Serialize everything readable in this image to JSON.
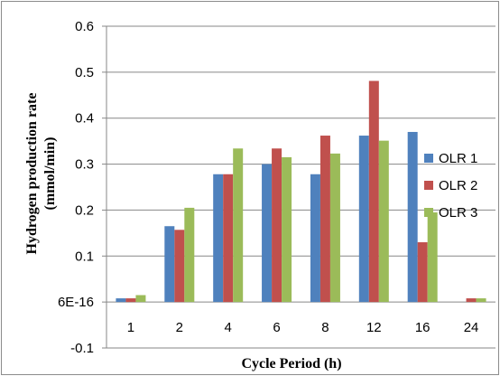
{
  "chart_data": {
    "type": "bar",
    "title": "",
    "xlabel": "Cycle Period  (h)",
    "ylabel_line1": "Hydrogen production rate",
    "ylabel_line2": "(mmol/min)",
    "categories": [
      "1",
      "2",
      "4",
      "6",
      "8",
      "12",
      "16",
      "24"
    ],
    "ylim": [
      -0.1,
      0.6
    ],
    "yticks": [
      -0.1,
      0,
      0.1,
      0.2,
      0.3,
      0.4,
      0.5,
      0.6
    ],
    "ytick_labels": [
      "-0.1",
      "6E-16",
      "0.1",
      "0.2",
      "0.3",
      "0.4",
      "0.5",
      "0.6"
    ],
    "grid": "horizontal",
    "legend_position": "right",
    "series": [
      {
        "name": "OLR 1",
        "color": "#4F81BD",
        "values": [
          0.008,
          0.165,
          0.278,
          0.3,
          0.278,
          0.362,
          0.37,
          0
        ]
      },
      {
        "name": "OLR 2",
        "color": "#C0504D",
        "values": [
          0.008,
          0.157,
          0.278,
          0.334,
          0.362,
          0.481,
          0.13,
          0.008
        ]
      },
      {
        "name": "OLR 3",
        "color": "#9BBB59",
        "values": [
          0.015,
          0.205,
          0.334,
          0.315,
          0.323,
          0.351,
          0.195,
          0.008
        ]
      }
    ]
  }
}
